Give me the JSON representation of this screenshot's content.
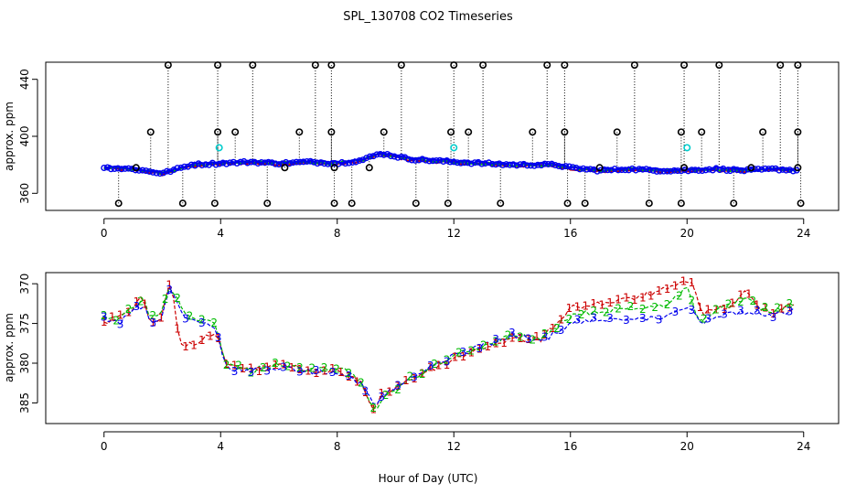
{
  "title": "SPL_130708  CO2 Timeseries",
  "colors": {
    "series1": "#cc0000",
    "series2": "#00bb00",
    "series3": "#0000ee",
    "outlier": "#000000",
    "flagged": "#00cccc",
    "line": "#000000"
  },
  "chart_data": [
    {
      "type": "scatter",
      "panel": "top",
      "title": "SPL_130708  CO2 Timeseries",
      "xlabel": "",
      "ylabel": "approx. ppm",
      "xlim": [
        -2,
        25.2
      ],
      "ylim": [
        348,
        452
      ],
      "x_ticks": [
        0,
        4,
        8,
        12,
        16,
        20,
        24
      ],
      "y_ticks": [
        360,
        400,
        440
      ],
      "series_markers": [
        "circle-red",
        "circle-green",
        "circle-blue"
      ],
      "baseline_points": [
        [
          0,
          378
        ],
        [
          1,
          377
        ],
        [
          2,
          374
        ],
        [
          3,
          380
        ],
        [
          4,
          381
        ],
        [
          5,
          382
        ],
        [
          6,
          381
        ],
        [
          7,
          382
        ],
        [
          8,
          381
        ],
        [
          8.8,
          383
        ],
        [
          9.5,
          388
        ],
        [
          10.5,
          384
        ],
        [
          12,
          382
        ],
        [
          14,
          380
        ],
        [
          15.5,
          380
        ],
        [
          16,
          378
        ],
        [
          17,
          376
        ],
        [
          18,
          377
        ],
        [
          19,
          376
        ],
        [
          20,
          376
        ],
        [
          21,
          377
        ],
        [
          22,
          376
        ],
        [
          23,
          377
        ],
        [
          23.8,
          376
        ]
      ],
      "outliers_high": [
        [
          2.2,
          450
        ],
        [
          3.9,
          450
        ],
        [
          5.1,
          450
        ],
        [
          7.25,
          450
        ],
        [
          7.8,
          450
        ],
        [
          10.2,
          450
        ],
        [
          12.0,
          450
        ],
        [
          13.0,
          450
        ],
        [
          15.2,
          450
        ],
        [
          15.8,
          450
        ],
        [
          18.2,
          450
        ],
        [
          19.9,
          450
        ],
        [
          21.1,
          450
        ],
        [
          23.2,
          450
        ],
        [
          23.8,
          450
        ],
        [
          1.6,
          403
        ],
        [
          3.9,
          403
        ],
        [
          4.5,
          403
        ],
        [
          6.7,
          403
        ],
        [
          7.8,
          403
        ],
        [
          9.6,
          403
        ],
        [
          11.9,
          403
        ],
        [
          12.5,
          403
        ],
        [
          14.7,
          403
        ],
        [
          15.8,
          403
        ],
        [
          17.6,
          403
        ],
        [
          19.8,
          403
        ],
        [
          20.5,
          403
        ],
        [
          22.6,
          403
        ],
        [
          23.8,
          403
        ],
        [
          1.1,
          378
        ],
        [
          6.2,
          378
        ],
        [
          7.9,
          378
        ],
        [
          9.1,
          378
        ],
        [
          17.0,
          378
        ],
        [
          19.9,
          378
        ],
        [
          22.2,
          378
        ],
        [
          23.8,
          378
        ]
      ],
      "outliers_low": [
        [
          0.5,
          353
        ],
        [
          2.7,
          353
        ],
        [
          3.8,
          353
        ],
        [
          5.6,
          353
        ],
        [
          7.9,
          353
        ],
        [
          8.5,
          353
        ],
        [
          10.7,
          353
        ],
        [
          11.8,
          353
        ],
        [
          13.6,
          353
        ],
        [
          15.9,
          353
        ],
        [
          16.5,
          353
        ],
        [
          18.7,
          353
        ],
        [
          19.8,
          353
        ],
        [
          21.6,
          353
        ],
        [
          23.9,
          353
        ]
      ],
      "flagged_points": [
        [
          3.95,
          392
        ],
        [
          12.0,
          392
        ],
        [
          20.0,
          392
        ]
      ]
    },
    {
      "type": "line",
      "panel": "bottom",
      "xlabel": "Hour of Day (UTC)",
      "ylabel": "approx. ppm",
      "xlim": [
        -2,
        25.2
      ],
      "ylim": [
        368.6,
        387.6
      ],
      "x_ticks": [
        0,
        4,
        8,
        12,
        16,
        20,
        24
      ],
      "y_ticks": [
        370,
        375,
        380,
        385
      ],
      "series": [
        {
          "marker": "1",
          "color": "red",
          "values": [
            [
              0,
              375
            ],
            [
              0.5,
              374
            ],
            [
              1,
              373
            ],
            [
              1.3,
              371.5
            ],
            [
              1.6,
              375
            ],
            [
              2,
              374
            ],
            [
              2.2,
              370
            ],
            [
              2.4,
              372
            ],
            [
              2.6,
              378
            ],
            [
              3.0,
              377.5
            ],
            [
              3.4,
              377
            ],
            [
              3.8,
              376
            ],
            [
              4.2,
              380
            ],
            [
              5,
              381
            ],
            [
              6,
              380
            ],
            [
              7,
              381
            ],
            [
              8,
              381
            ],
            [
              8.8,
              382.5
            ],
            [
              9.3,
              386
            ],
            [
              9.5,
              384
            ],
            [
              10.5,
              382
            ],
            [
              12,
              379.5
            ],
            [
              13,
              378
            ],
            [
              14,
              377
            ],
            [
              15,
              377
            ],
            [
              16,
              373
            ],
            [
              17,
              372.5
            ],
            [
              18,
              372
            ],
            [
              19,
              371
            ],
            [
              19.5,
              370.5
            ],
            [
              20.2,
              369.5
            ],
            [
              20.5,
              374
            ],
            [
              21,
              373
            ],
            [
              21.5,
              373
            ],
            [
              22,
              371
            ],
            [
              22.5,
              373
            ],
            [
              23,
              373.5
            ],
            [
              23.8,
              372.5
            ]
          ]
        },
        {
          "marker": "2",
          "color": "green",
          "values": [
            [
              0,
              374
            ],
            [
              0.5,
              374.5
            ],
            [
              1,
              373
            ],
            [
              1.4,
              372
            ],
            [
              1.6,
              374.5
            ],
            [
              2,
              373.5
            ],
            [
              2.2,
              370
            ],
            [
              2.5,
              372
            ],
            [
              2.8,
              374
            ],
            [
              3.4,
              374.5
            ],
            [
              3.8,
              375
            ],
            [
              4.2,
              380
            ],
            [
              5,
              381
            ],
            [
              6,
              380
            ],
            [
              7,
              381
            ],
            [
              8,
              380.5
            ],
            [
              8.8,
              382
            ],
            [
              9.3,
              386.5
            ],
            [
              9.6,
              384.5
            ],
            [
              10.5,
              382
            ],
            [
              12,
              379
            ],
            [
              13,
              378
            ],
            [
              14,
              376.5
            ],
            [
              15,
              377
            ],
            [
              16,
              374
            ],
            [
              17,
              373.5
            ],
            [
              18,
              373
            ],
            [
              19,
              373
            ],
            [
              19.5,
              372
            ],
            [
              20,
              370.5
            ],
            [
              20.4,
              374.5
            ],
            [
              21,
              373.5
            ],
            [
              22,
              372
            ],
            [
              22.5,
              373
            ],
            [
              23,
              373.5
            ],
            [
              23.8,
              372.5
            ]
          ]
        },
        {
          "marker": "3",
          "color": "blue",
          "values": [
            [
              0,
              374.5
            ],
            [
              0.5,
              375
            ],
            [
              1,
              373.5
            ],
            [
              1.4,
              372.5
            ],
            [
              1.6,
              375
            ],
            [
              2,
              374.5
            ],
            [
              2.2,
              370.5
            ],
            [
              2.5,
              372.5
            ],
            [
              2.8,
              374.5
            ],
            [
              3.4,
              375
            ],
            [
              3.8,
              375.5
            ],
            [
              4.2,
              380.5
            ],
            [
              5,
              381
            ],
            [
              6,
              380.5
            ],
            [
              7,
              381
            ],
            [
              8,
              381
            ],
            [
              8.8,
              382.5
            ],
            [
              9.3,
              385.5
            ],
            [
              9.6,
              384
            ],
            [
              10.5,
              382
            ],
            [
              12,
              379
            ],
            [
              13,
              377.8
            ],
            [
              14,
              376.5
            ],
            [
              15,
              377.2
            ],
            [
              16,
              375
            ],
            [
              17,
              374.5
            ],
            [
              18,
              374.3
            ],
            [
              19,
              374.5
            ],
            [
              19.5,
              373.5
            ],
            [
              20.2,
              373
            ],
            [
              20.5,
              375
            ],
            [
              21,
              374
            ],
            [
              22,
              373.5
            ],
            [
              23,
              374
            ],
            [
              23.8,
              373
            ]
          ]
        }
      ]
    }
  ]
}
